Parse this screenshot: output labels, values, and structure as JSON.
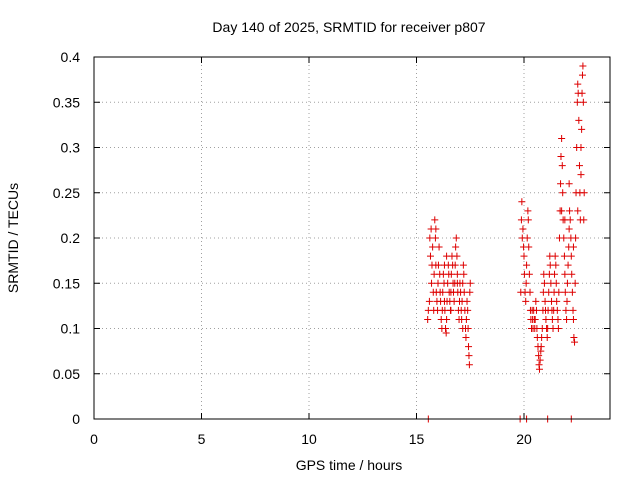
{
  "chart_data": {
    "type": "scatter",
    "title": "Day 140 of 2025, SRMTID for receiver p807",
    "xlabel": "GPS time / hours",
    "ylabel": "SRMTID / TECUs",
    "xlim": [
      0,
      24
    ],
    "ylim": [
      0,
      0.4
    ],
    "x_ticks": [
      0,
      5,
      10,
      15,
      20
    ],
    "x_tick_labels": [
      "0",
      "5",
      "10",
      "15",
      "20"
    ],
    "y_ticks": [
      0,
      0.05,
      0.1,
      0.15,
      0.2,
      0.25,
      0.3,
      0.35,
      0.4
    ],
    "y_tick_labels": [
      "0",
      "0.05",
      "0.1",
      "0.15",
      "0.2",
      "0.25",
      "0.3",
      "0.35",
      "0.4"
    ],
    "grid": true,
    "marker": "+",
    "colors": {
      "points": "#dd0000",
      "frame": "#000000",
      "grid": "#a0a0a0"
    },
    "series": [
      {
        "name": "SRMTID",
        "points": [
          [
            15.52,
            0.11
          ],
          [
            15.55,
            0.12
          ],
          [
            15.6,
            0.13
          ],
          [
            15.62,
            0.2
          ],
          [
            15.65,
            0.18
          ],
          [
            15.68,
            0.21
          ],
          [
            15.7,
            0.15
          ],
          [
            15.72,
            0.17
          ],
          [
            15.75,
            0.19
          ],
          [
            15.78,
            0.14
          ],
          [
            15.8,
            0.12
          ],
          [
            15.82,
            0.16
          ],
          [
            15.85,
            0.22
          ],
          [
            15.88,
            0.2
          ],
          [
            15.9,
            0.21
          ],
          [
            15.92,
            0.14
          ],
          [
            15.95,
            0.13
          ],
          [
            15.98,
            0.12
          ],
          [
            16.0,
            0.15
          ],
          [
            16.02,
            0.17
          ],
          [
            16.05,
            0.19
          ],
          [
            16.08,
            0.16
          ],
          [
            16.1,
            0.14
          ],
          [
            16.12,
            0.13
          ],
          [
            16.15,
            0.11
          ],
          [
            16.18,
            0.1
          ],
          [
            16.2,
            0.12
          ],
          [
            16.22,
            0.14
          ],
          [
            16.25,
            0.16
          ],
          [
            16.28,
            0.15
          ],
          [
            16.3,
            0.13
          ],
          [
            16.32,
            0.12
          ],
          [
            16.35,
            0.1
          ],
          [
            16.38,
            0.095
          ],
          [
            16.4,
            0.11
          ],
          [
            16.42,
            0.13
          ],
          [
            16.45,
            0.15
          ],
          [
            16.48,
            0.17
          ],
          [
            16.5,
            0.16
          ],
          [
            16.52,
            0.14
          ],
          [
            16.55,
            0.13
          ],
          [
            16.58,
            0.12
          ],
          [
            16.6,
            0.14
          ],
          [
            16.62,
            0.16
          ],
          [
            16.65,
            0.18
          ],
          [
            16.68,
            0.17
          ],
          [
            16.7,
            0.15
          ],
          [
            16.72,
            0.14
          ],
          [
            16.75,
            0.13
          ],
          [
            16.78,
            0.15
          ],
          [
            16.8,
            0.17
          ],
          [
            16.82,
            0.19
          ],
          [
            16.85,
            0.2
          ],
          [
            16.88,
            0.18
          ],
          [
            16.9,
            0.16
          ],
          [
            16.92,
            0.14
          ],
          [
            16.95,
            0.12
          ],
          [
            16.98,
            0.11
          ],
          [
            17.0,
            0.13
          ],
          [
            17.02,
            0.15
          ],
          [
            17.05,
            0.14
          ],
          [
            17.08,
            0.12
          ],
          [
            17.1,
            0.11
          ],
          [
            17.12,
            0.13
          ],
          [
            17.15,
            0.15
          ],
          [
            17.18,
            0.17
          ],
          [
            17.2,
            0.16
          ],
          [
            17.22,
            0.14
          ],
          [
            17.25,
            0.12
          ],
          [
            17.28,
            0.1
          ],
          [
            17.3,
            0.09
          ],
          [
            17.32,
            0.11
          ],
          [
            17.35,
            0.13
          ],
          [
            17.38,
            0.12
          ],
          [
            17.4,
            0.1
          ],
          [
            17.42,
            0.08
          ],
          [
            17.44,
            0.07
          ],
          [
            17.46,
            0.06
          ],
          [
            17.48,
            0.14
          ],
          [
            17.5,
            0.15
          ],
          [
            16.3,
            0.17
          ],
          [
            16.6,
            0.12
          ],
          [
            16.9,
            0.15
          ],
          [
            17.15,
            0.1
          ],
          [
            15.9,
            0.17
          ],
          [
            16.4,
            0.18
          ],
          [
            19.85,
            0.14
          ],
          [
            19.88,
            0.22
          ],
          [
            19.9,
            0.24
          ],
          [
            19.92,
            0.2
          ],
          [
            19.95,
            0.21
          ],
          [
            19.98,
            0.19
          ],
          [
            20.0,
            0.18
          ],
          [
            20.02,
            0.16
          ],
          [
            20.05,
            0.14
          ],
          [
            20.08,
            0.13
          ],
          [
            20.1,
            0.15
          ],
          [
            20.12,
            0.17
          ],
          [
            20.15,
            0.2
          ],
          [
            20.18,
            0.23
          ],
          [
            20.2,
            0.22
          ],
          [
            20.22,
            0.19
          ],
          [
            20.25,
            0.16
          ],
          [
            20.28,
            0.14
          ],
          [
            20.3,
            0.12
          ],
          [
            20.32,
            0.11
          ],
          [
            20.35,
            0.1
          ],
          [
            20.38,
            0.12
          ],
          [
            20.4,
            0.11
          ],
          [
            20.42,
            0.1
          ],
          [
            20.45,
            0.12
          ],
          [
            20.48,
            0.11
          ],
          [
            20.5,
            0.1
          ],
          [
            20.52,
            0.11
          ],
          [
            20.55,
            0.13
          ],
          [
            20.58,
            0.12
          ],
          [
            20.6,
            0.1
          ],
          [
            20.62,
            0.09
          ],
          [
            20.65,
            0.08
          ],
          [
            20.68,
            0.07
          ],
          [
            20.7,
            0.06
          ],
          [
            20.72,
            0.055
          ],
          [
            20.75,
            0.065
          ],
          [
            20.78,
            0.075
          ],
          [
            20.8,
            0.08
          ],
          [
            20.82,
            0.09
          ],
          [
            20.85,
            0.1
          ],
          [
            20.88,
            0.12
          ],
          [
            20.9,
            0.14
          ],
          [
            20.92,
            0.16
          ],
          [
            20.95,
            0.15
          ],
          [
            20.98,
            0.13
          ],
          [
            21.0,
            0.12
          ],
          [
            21.02,
            0.11
          ],
          [
            21.05,
            0.1
          ],
          [
            21.08,
            0.09
          ],
          [
            21.1,
            0.1
          ],
          [
            21.12,
            0.12
          ],
          [
            21.15,
            0.14
          ],
          [
            21.18,
            0.16
          ],
          [
            21.2,
            0.18
          ],
          [
            21.22,
            0.17
          ],
          [
            21.25,
            0.15
          ],
          [
            21.28,
            0.13
          ],
          [
            21.3,
            0.12
          ],
          [
            21.32,
            0.11
          ],
          [
            21.35,
            0.1
          ],
          [
            21.38,
            0.12
          ],
          [
            21.4,
            0.14
          ],
          [
            21.42,
            0.16
          ],
          [
            21.45,
            0.18
          ],
          [
            21.48,
            0.17
          ],
          [
            21.5,
            0.15
          ],
          [
            21.52,
            0.13
          ],
          [
            21.55,
            0.12
          ],
          [
            21.58,
            0.11
          ],
          [
            21.6,
            0.1
          ],
          [
            21.62,
            0.14
          ],
          [
            21.65,
            0.2
          ],
          [
            21.68,
            0.23
          ],
          [
            21.7,
            0.26
          ],
          [
            21.72,
            0.29
          ],
          [
            21.75,
            0.31
          ],
          [
            21.78,
            0.28
          ],
          [
            21.8,
            0.25
          ],
          [
            21.82,
            0.22
          ],
          [
            21.85,
            0.2
          ],
          [
            21.88,
            0.18
          ],
          [
            21.9,
            0.16
          ],
          [
            21.92,
            0.14
          ],
          [
            21.95,
            0.12
          ],
          [
            21.98,
            0.11
          ],
          [
            22.0,
            0.13
          ],
          [
            22.02,
            0.15
          ],
          [
            22.05,
            0.17
          ],
          [
            22.08,
            0.19
          ],
          [
            22.1,
            0.21
          ],
          [
            22.12,
            0.23
          ],
          [
            22.15,
            0.22
          ],
          [
            22.18,
            0.2
          ],
          [
            22.2,
            0.18
          ],
          [
            22.22,
            0.16
          ],
          [
            22.25,
            0.14
          ],
          [
            22.28,
            0.12
          ],
          [
            22.3,
            0.11
          ],
          [
            22.32,
            0.09
          ],
          [
            22.35,
            0.085
          ],
          [
            22.38,
            0.15
          ],
          [
            22.4,
            0.2
          ],
          [
            22.42,
            0.25
          ],
          [
            22.45,
            0.3
          ],
          [
            22.48,
            0.35
          ],
          [
            22.5,
            0.37
          ],
          [
            22.52,
            0.36
          ],
          [
            22.55,
            0.33
          ],
          [
            22.58,
            0.28
          ],
          [
            22.6,
            0.25
          ],
          [
            22.62,
            0.22
          ],
          [
            22.65,
            0.27
          ],
          [
            22.68,
            0.32
          ],
          [
            22.7,
            0.36
          ],
          [
            22.72,
            0.38
          ],
          [
            22.74,
            0.39
          ],
          [
            22.76,
            0.35
          ],
          [
            22.78,
            0.22
          ],
          [
            22.8,
            0.25
          ],
          [
            21.75,
            0.23
          ],
          [
            21.9,
            0.22
          ],
          [
            22.1,
            0.26
          ],
          [
            22.3,
            0.19
          ],
          [
            22.5,
            0.23
          ],
          [
            22.65,
            0.3
          ],
          [
            15.55,
            0.0
          ],
          [
            19.82,
            0.0
          ],
          [
            20.12,
            0.0
          ],
          [
            21.1,
            0.0
          ],
          [
            22.2,
            0.0
          ]
        ]
      }
    ]
  }
}
